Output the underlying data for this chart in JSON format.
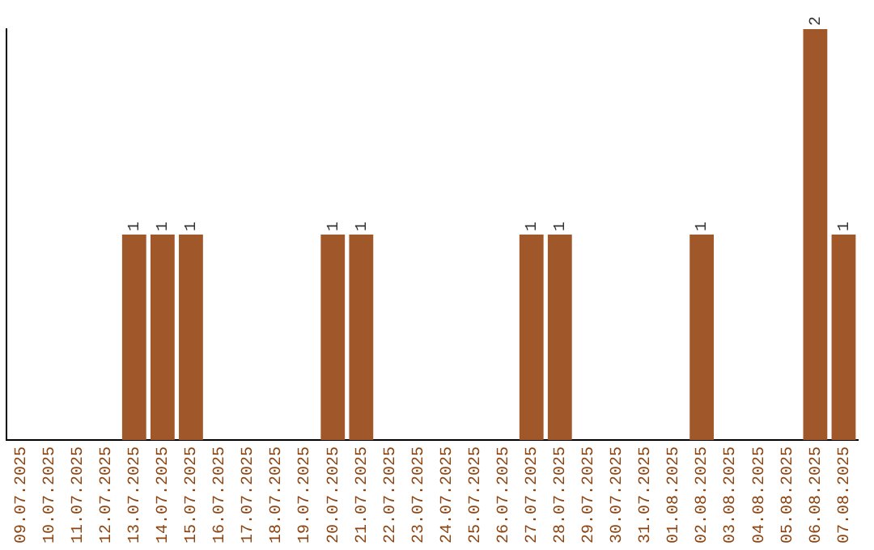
{
  "chart_data": {
    "type": "bar",
    "categories": [
      "09.07.2025",
      "10.07.2025",
      "11.07.2025",
      "12.07.2025",
      "13.07.2025",
      "14.07.2025",
      "15.07.2025",
      "16.07.2025",
      "17.07.2025",
      "18.07.2025",
      "19.07.2025",
      "20.07.2025",
      "21.07.2025",
      "22.07.2025",
      "23.07.2025",
      "24.07.2025",
      "25.07.2025",
      "26.07.2025",
      "27.07.2025",
      "28.07.2025",
      "29.07.2025",
      "30.07.2025",
      "31.07.2025",
      "01.08.2025",
      "02.08.2025",
      "03.08.2025",
      "04.08.2025",
      "05.08.2025",
      "06.08.2025",
      "07.08.2025"
    ],
    "values": [
      0,
      0,
      0,
      0,
      1,
      1,
      1,
      0,
      0,
      0,
      0,
      1,
      1,
      0,
      0,
      0,
      0,
      0,
      1,
      1,
      0,
      0,
      0,
      0,
      1,
      0,
      0,
      0,
      2,
      1
    ],
    "value_labels": [
      null,
      null,
      null,
      null,
      "1",
      "1",
      "1",
      null,
      null,
      null,
      null,
      "1",
      "1",
      null,
      null,
      null,
      null,
      null,
      "1",
      "1",
      null,
      null,
      null,
      null,
      "1",
      null,
      null,
      null,
      "2",
      "1"
    ],
    "color": "#a0582a",
    "ylim": [
      0,
      2
    ],
    "tick_labels": "x",
    "grid": false,
    "legend": false
  }
}
